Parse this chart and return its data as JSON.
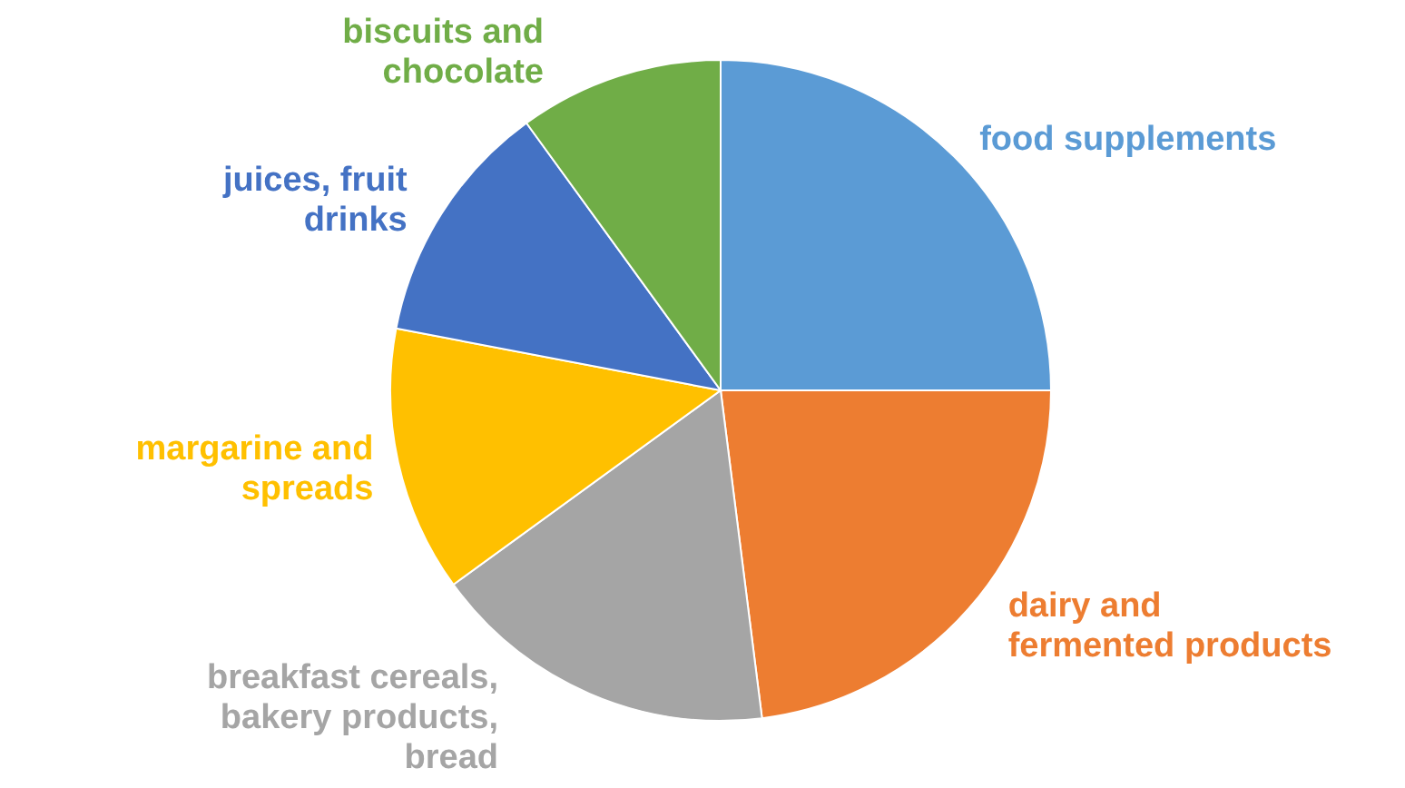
{
  "chart_data": {
    "type": "pie",
    "categories": [
      "food supplements",
      "dairy and fermented products",
      "breakfast cereals, bakery products, bread",
      "margarine and spreads",
      "juices, fruit drinks",
      "biscuits and chocolate"
    ],
    "values": [
      25,
      23,
      17,
      13,
      12,
      10
    ],
    "colors": [
      "#5b9bd5",
      "#ed7d31",
      "#a5a5a5",
      "#ffc000",
      "#4472c4",
      "#70ad47"
    ]
  }
}
